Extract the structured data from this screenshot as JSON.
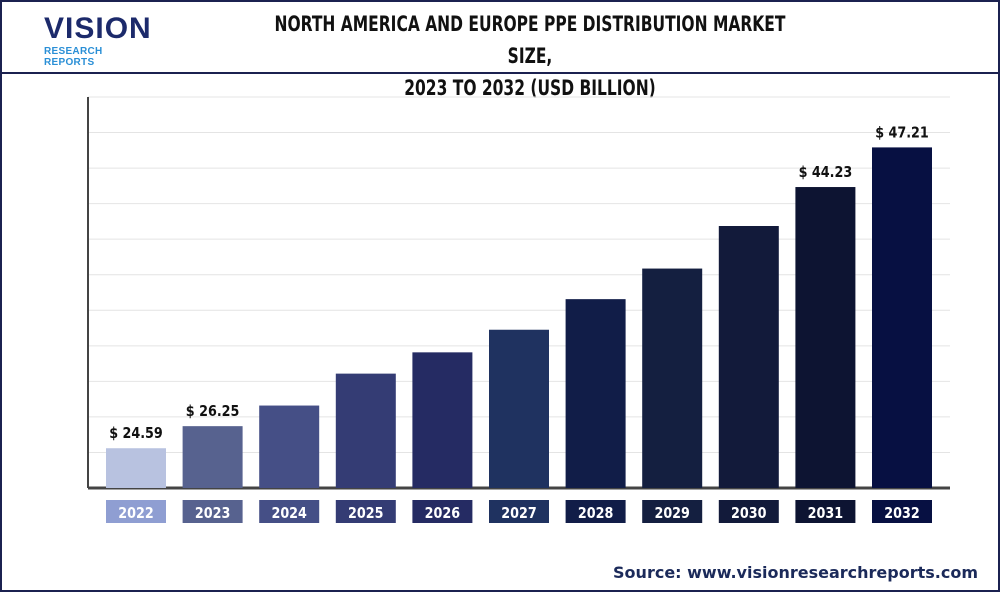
{
  "logo": {
    "line1": "VISION",
    "line2": "RESEARCH REPORTS"
  },
  "chart_data": {
    "type": "bar",
    "title": "NORTH AMERICA AND EUROPE PPE DISTRIBUTION MARKET SIZE, 2023 TO 2032 (USD BILLION)",
    "title_lines": [
      "NORTH AMERICA AND EUROPE PPE DISTRIBUTION MARKET SIZE,",
      "2023 TO 2032 (USD BILLION)"
    ],
    "categories": [
      "2022",
      "2023",
      "2024",
      "2025",
      "2026",
      "2027",
      "2028",
      "2029",
      "2030",
      "2031",
      "2032"
    ],
    "values": [
      24.59,
      26.25,
      27.8,
      30.2,
      31.8,
      33.5,
      35.8,
      38.1,
      41.3,
      44.23,
      47.21
    ],
    "data_labels": {
      "0": "$ 24.59",
      "1": "$ 26.25",
      "9": "$ 44.23",
      "10": "$ 47.21"
    },
    "ylim": [
      21.6,
      51
    ],
    "grid": true,
    "xlabel": "",
    "ylabel": "",
    "bar_colors": [
      "#b8c2e0",
      "#57628f",
      "#454f86",
      "#343c74",
      "#252b63",
      "#1f3260",
      "#111d48",
      "#141f40",
      "#121a3a",
      "#0d1432",
      "#071042"
    ],
    "label_colors": [
      "#8f9ed2",
      "#57628f",
      "#454f86",
      "#343c74",
      "#252b63",
      "#1f3260",
      "#111d48",
      "#141f40",
      "#121a3a",
      "#0d1432",
      "#071042"
    ]
  },
  "source": "Source: www.visionresearchreports.com"
}
